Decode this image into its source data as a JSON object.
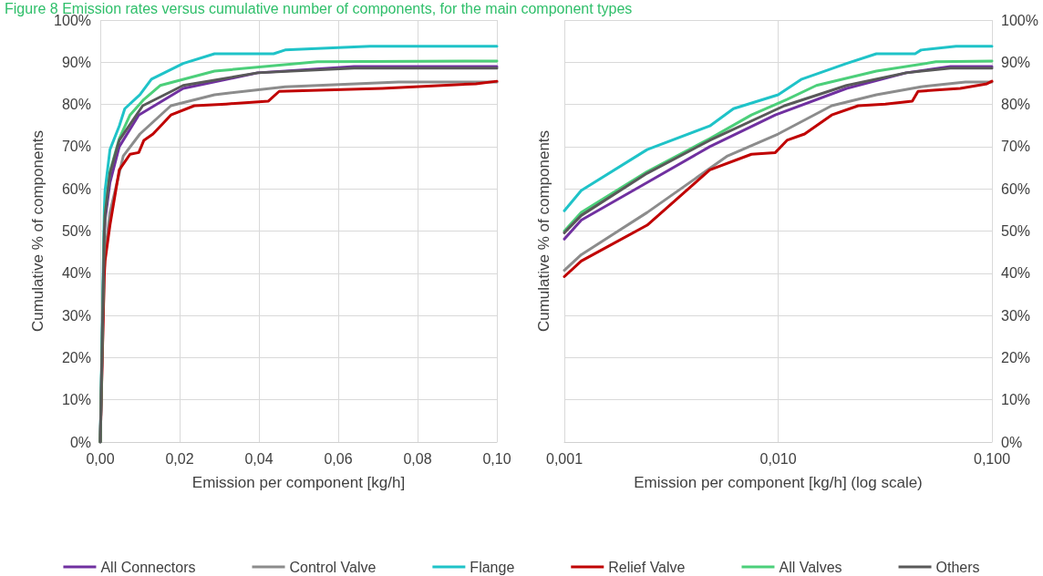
{
  "chart_data": [
    {
      "type": "line",
      "title": "Figure 8 Emission rates versus cumulative number of components, for the main component types",
      "xlabel": "Emission per component [kg/h]",
      "ylabel": "Cumulative % of components",
      "xlim": [
        0,
        0.1
      ],
      "xticks": [
        {
          "value": 0,
          "label": "0,00"
        },
        {
          "value": 0.02,
          "label": "0,02"
        },
        {
          "value": 0.04,
          "label": "0,04"
        },
        {
          "value": 0.06,
          "label": "0,06"
        },
        {
          "value": 0.08,
          "label": "0,08"
        },
        {
          "value": 0.1,
          "label": "0,10"
        }
      ],
      "ylim": [
        0,
        100
      ],
      "yticks": [
        {
          "value": 0,
          "label": "0%"
        },
        {
          "value": 10,
          "label": "10%"
        },
        {
          "value": 20,
          "label": "20%"
        },
        {
          "value": 30,
          "label": "30%"
        },
        {
          "value": 40,
          "label": "40%"
        },
        {
          "value": 50,
          "label": "50%"
        },
        {
          "value": 60,
          "label": "60%"
        },
        {
          "value": 70,
          "label": "70%"
        },
        {
          "value": 80,
          "label": "80%"
        },
        {
          "value": 90,
          "label": "90%"
        },
        {
          "value": 100,
          "label": "100%"
        }
      ],
      "grid": true,
      "legend": "bottom",
      "marker": "none",
      "line_style": "solid",
      "series": [
        {
          "name": "All Connectors",
          "color": "#7030a0",
          "x": [
            0,
            0.001,
            0.0012,
            0.00244,
            0.00479,
            0.0097,
            0.0209,
            0.0397,
            0.064,
            0.1
          ],
          "values": [
            0,
            48.1,
            52.6,
            61.5,
            70.0,
            77.5,
            83.8,
            87.5,
            89.0,
            89.0
          ]
        },
        {
          "name": "Control Valve",
          "color": "#8c8c8c",
          "x": [
            0,
            0.001,
            0.0012,
            0.00244,
            0.0058,
            0.01,
            0.0178,
            0.0288,
            0.0466,
            0.0752,
            0.1
          ],
          "values": [
            0,
            40.7,
            44.4,
            54.4,
            67.8,
            73.0,
            79.7,
            82.3,
            84.2,
            85.3,
            85.3
          ]
        },
        {
          "name": "Flange",
          "color": "#1fc3c8",
          "x": [
            0,
            0.001,
            0.0012,
            0.00244,
            0.00479,
            0.00618,
            0.01,
            0.0129,
            0.0209,
            0.0288,
            0.0437,
            0.0466,
            0.068,
            0.1
          ],
          "values": [
            0,
            54.8,
            59.6,
            69.3,
            74.9,
            79.0,
            82.3,
            86.0,
            89.7,
            92.0,
            92.0,
            92.9,
            93.8,
            93.8
          ]
        },
        {
          "name": "Relief Valve",
          "color": "#c00000",
          "x": [
            0,
            0.001,
            0.0012,
            0.00244,
            0.00479,
            0.0075,
            0.0097,
            0.011,
            0.0133,
            0.0178,
            0.0237,
            0.0317,
            0.0424,
            0.0451,
            0.0711,
            0.0947,
            0.1
          ],
          "values": [
            0,
            39.2,
            42.9,
            51.4,
            64.5,
            68.2,
            68.6,
            71.5,
            73.0,
            77.5,
            79.7,
            80.1,
            80.8,
            83.1,
            83.8,
            84.9,
            85.5
          ]
        },
        {
          "name": "All Valves",
          "color": "#4ccf7a",
          "x": [
            0,
            0.001,
            0.0012,
            0.00244,
            0.00479,
            0.0075,
            0.011,
            0.0151,
            0.0288,
            0.0547,
            0.1
          ],
          "values": [
            0,
            50.0,
            54.4,
            64.1,
            71.9,
            77.5,
            81.2,
            84.5,
            87.9,
            90.1,
            90.3
          ]
        },
        {
          "name": "Others",
          "color": "#595959",
          "x": [
            0,
            0.001,
            0.0012,
            0.00244,
            0.00479,
            0.0107,
            0.0209,
            0.0397,
            0.064,
            0.1
          ],
          "values": [
            0,
            49.6,
            53.7,
            63.7,
            71.5,
            79.7,
            84.5,
            87.5,
            88.6,
            88.6
          ]
        }
      ]
    },
    {
      "type": "line",
      "xlabel": "Emission per component [kg/h] (log scale)",
      "ylabel": "Cumulative % of components",
      "log": "x",
      "xlim": [
        0.001,
        0.1
      ],
      "xticks": [
        {
          "value": 0.001,
          "label": "0,001"
        },
        {
          "value": 0.01,
          "label": "0,010"
        },
        {
          "value": 0.1,
          "label": "0,100"
        }
      ],
      "y2lim": [
        0,
        100
      ],
      "y2ticks": [
        {
          "value": 0,
          "label": "0%"
        },
        {
          "value": 10,
          "label": "10%"
        },
        {
          "value": 20,
          "label": "20%"
        },
        {
          "value": 30,
          "label": "30%"
        },
        {
          "value": 40,
          "label": "40%"
        },
        {
          "value": 50,
          "label": "50%"
        },
        {
          "value": 60,
          "label": "60%"
        },
        {
          "value": 70,
          "label": "70%"
        },
        {
          "value": 80,
          "label": "80%"
        },
        {
          "value": 90,
          "label": "90%"
        },
        {
          "value": 100,
          "label": "100%"
        }
      ],
      "grid": true,
      "marker": "none",
      "line_style": "solid",
      "series": [
        {
          "axis": "y2",
          "color": "#7030a0",
          "x": [
            0.001,
            0.0012,
            0.00244,
            0.00479,
            0.0097,
            0.0209,
            0.0397,
            0.064,
            0.1
          ],
          "values": [
            48.1,
            52.6,
            61.5,
            70.0,
            77.5,
            83.8,
            87.5,
            89.0,
            89.0
          ]
        },
        {
          "axis": "y2",
          "color": "#8c8c8c",
          "x": [
            0.001,
            0.0012,
            0.00244,
            0.0058,
            0.01,
            0.0178,
            0.0288,
            0.0466,
            0.0752,
            0.1
          ],
          "values": [
            40.7,
            44.4,
            54.4,
            67.8,
            73.0,
            79.7,
            82.3,
            84.2,
            85.3,
            85.3
          ]
        },
        {
          "axis": "y2",
          "color": "#1fc3c8",
          "x": [
            0.001,
            0.0012,
            0.00244,
            0.00479,
            0.00618,
            0.01,
            0.0129,
            0.0209,
            0.0288,
            0.0437,
            0.0466,
            0.068,
            0.1
          ],
          "values": [
            54.8,
            59.6,
            69.3,
            74.9,
            79.0,
            82.3,
            86.0,
            89.7,
            92.0,
            92.0,
            92.9,
            93.8,
            93.8
          ]
        },
        {
          "axis": "y2",
          "color": "#c00000",
          "x": [
            0.001,
            0.0012,
            0.00244,
            0.00479,
            0.0075,
            0.0097,
            0.011,
            0.0133,
            0.0178,
            0.0237,
            0.0317,
            0.0424,
            0.0451,
            0.0711,
            0.0947,
            0.1
          ],
          "values": [
            39.2,
            42.9,
            51.4,
            64.5,
            68.2,
            68.6,
            71.5,
            73.0,
            77.5,
            79.7,
            80.1,
            80.8,
            83.1,
            83.8,
            84.9,
            85.5
          ]
        },
        {
          "axis": "y2",
          "color": "#4ccf7a",
          "x": [
            0.001,
            0.0012,
            0.00244,
            0.00479,
            0.0075,
            0.011,
            0.0151,
            0.0288,
            0.0547,
            0.1
          ],
          "values": [
            50.0,
            54.4,
            64.1,
            71.9,
            77.5,
            81.2,
            84.5,
            87.9,
            90.1,
            90.3
          ]
        },
        {
          "axis": "y2",
          "color": "#595959",
          "x": [
            0.001,
            0.0012,
            0.00244,
            0.00479,
            0.0107,
            0.0209,
            0.0397,
            0.064,
            0.1
          ],
          "values": [
            49.6,
            53.7,
            63.7,
            71.5,
            79.7,
            84.5,
            87.5,
            88.6,
            88.6
          ]
        }
      ]
    }
  ]
}
